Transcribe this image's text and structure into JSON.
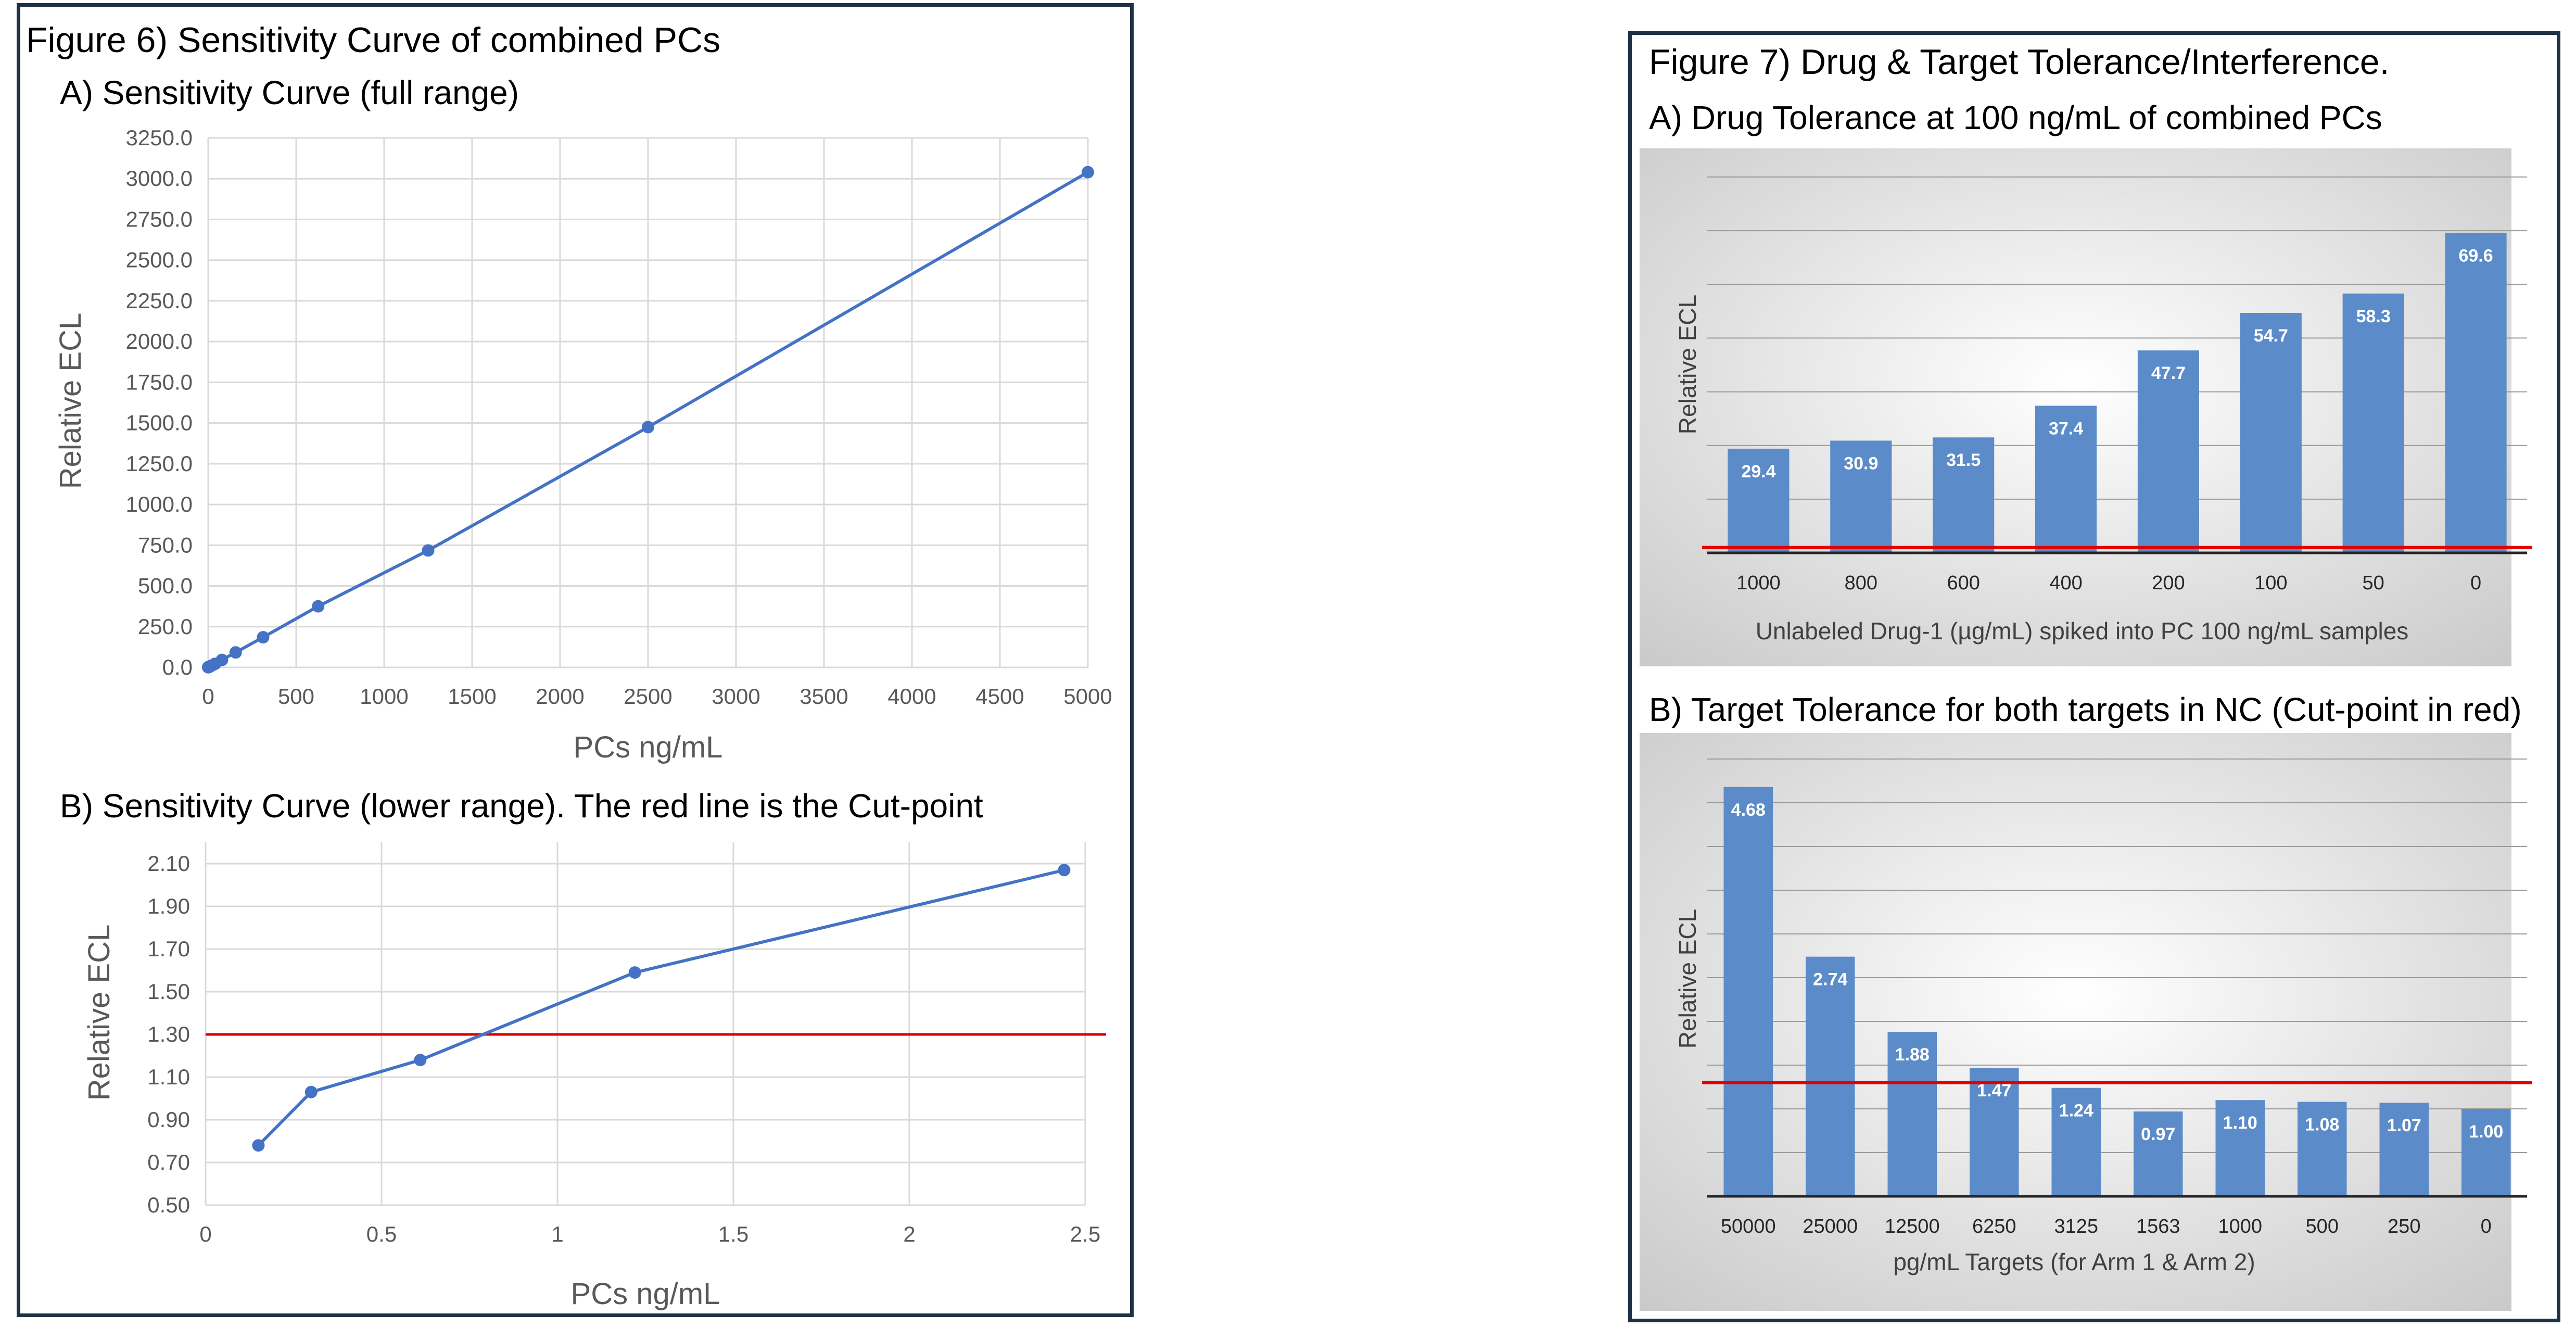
{
  "figure6": {
    "title": "Figure 6) Sensitivity Curve of combined PCs",
    "chartA": {
      "type": "line",
      "title": "A) Sensitivity Curve (full range)",
      "xlabel": "PCs ng/mL",
      "ylabel": "Relative ECL",
      "xlim": [
        0,
        5000
      ],
      "ylim": [
        0,
        3250
      ],
      "xticks": [
        0,
        500,
        1000,
        1500,
        2000,
        2500,
        3000,
        3500,
        4000,
        4500,
        5000
      ],
      "yticks": [
        "0.0",
        "250.0",
        "500.0",
        "750.0",
        "1000.0",
        "1250.0",
        "1500.0",
        "1750.0",
        "2000.0",
        "2250.0",
        "2500.0",
        "2750.0",
        "3000.0",
        "3250.0"
      ],
      "grid": true,
      "series": [
        {
          "color": "#4472c4",
          "x": [
            0.15,
            0.3,
            0.6,
            1.2,
            2.44,
            4.9,
            9.8,
            19.5,
            39,
            78,
            156,
            312,
            625,
            1250,
            2500,
            5000
          ],
          "y": [
            0.8,
            1.0,
            1.2,
            1.6,
            2.1,
            3.3,
            6.1,
            11.5,
            22,
            46,
            92,
            185,
            375,
            718,
            1475,
            3040
          ]
        }
      ]
    },
    "chartB": {
      "type": "line",
      "title": "B) Sensitivity Curve (lower range). The red line is the Cut-point",
      "xlabel": "PCs ng/mL",
      "ylabel": "Relative ECL",
      "xlim": [
        0,
        2.5
      ],
      "ylim": [
        0.5,
        2.2
      ],
      "xticks": [
        "0",
        "0.5",
        "1",
        "1.5",
        "2",
        "2.5"
      ],
      "yticks": [
        "0.50",
        "0.70",
        "0.90",
        "1.10",
        "1.30",
        "1.50",
        "1.70",
        "1.90",
        "2.10"
      ],
      "grid": true,
      "cut_point": 1.3,
      "cut_color": "#e00000",
      "series": [
        {
          "color": "#4472c4",
          "x": [
            0.15,
            0.3,
            0.61,
            1.22,
            2.44
          ],
          "y": [
            0.78,
            1.03,
            1.18,
            1.59,
            2.07
          ]
        }
      ]
    }
  },
  "figure7": {
    "title": "Figure 7) Drug & Target Tolerance/Interference.",
    "chartA": {
      "type": "bar",
      "title": "A) Drug Tolerance at 100 ng/mL of combined PCs",
      "xlabel": "Unlabeled Drug-1 (µg/mL) spiked into PC 100 ng/mL samples",
      "ylabel": "Relative ECL",
      "categories": [
        "1000",
        "800",
        "600",
        "400",
        "200",
        "100",
        "50",
        "0"
      ],
      "values": [
        29.4,
        30.9,
        31.5,
        37.4,
        47.7,
        54.7,
        58.3,
        69.6
      ],
      "data_labels": [
        "29.4",
        "30.9",
        "31.5",
        "37.4",
        "47.7",
        "54.7",
        "58.3",
        "69.6"
      ],
      "ylim": [
        10,
        80
      ],
      "cut_point": 11.0,
      "bar_color": "#5b8cc9",
      "cut_color": "#e00000"
    },
    "chartB": {
      "type": "bar",
      "title": "B) Target Tolerance for both targets in NC (Cut-point in red)",
      "xlabel": "pg/mL Targets (for Arm 1 & Arm 2)",
      "ylabel": "Relative ECL",
      "categories": [
        "50000",
        "25000",
        "12500",
        "6250",
        "3125",
        "1563",
        "1000",
        "500",
        "250",
        "0"
      ],
      "values": [
        4.68,
        2.74,
        1.88,
        1.47,
        1.24,
        0.97,
        1.1,
        1.08,
        1.07,
        1.0
      ],
      "data_labels": [
        "4.68",
        "2.74",
        "1.88",
        "1.47",
        "1.24",
        "0.97",
        "1.10",
        "1.08",
        "1.07",
        "1.00"
      ],
      "ylim": [
        0,
        5.0
      ],
      "cut_point": 1.3,
      "bar_color": "#5b8cc9",
      "cut_color": "#e00000"
    }
  }
}
